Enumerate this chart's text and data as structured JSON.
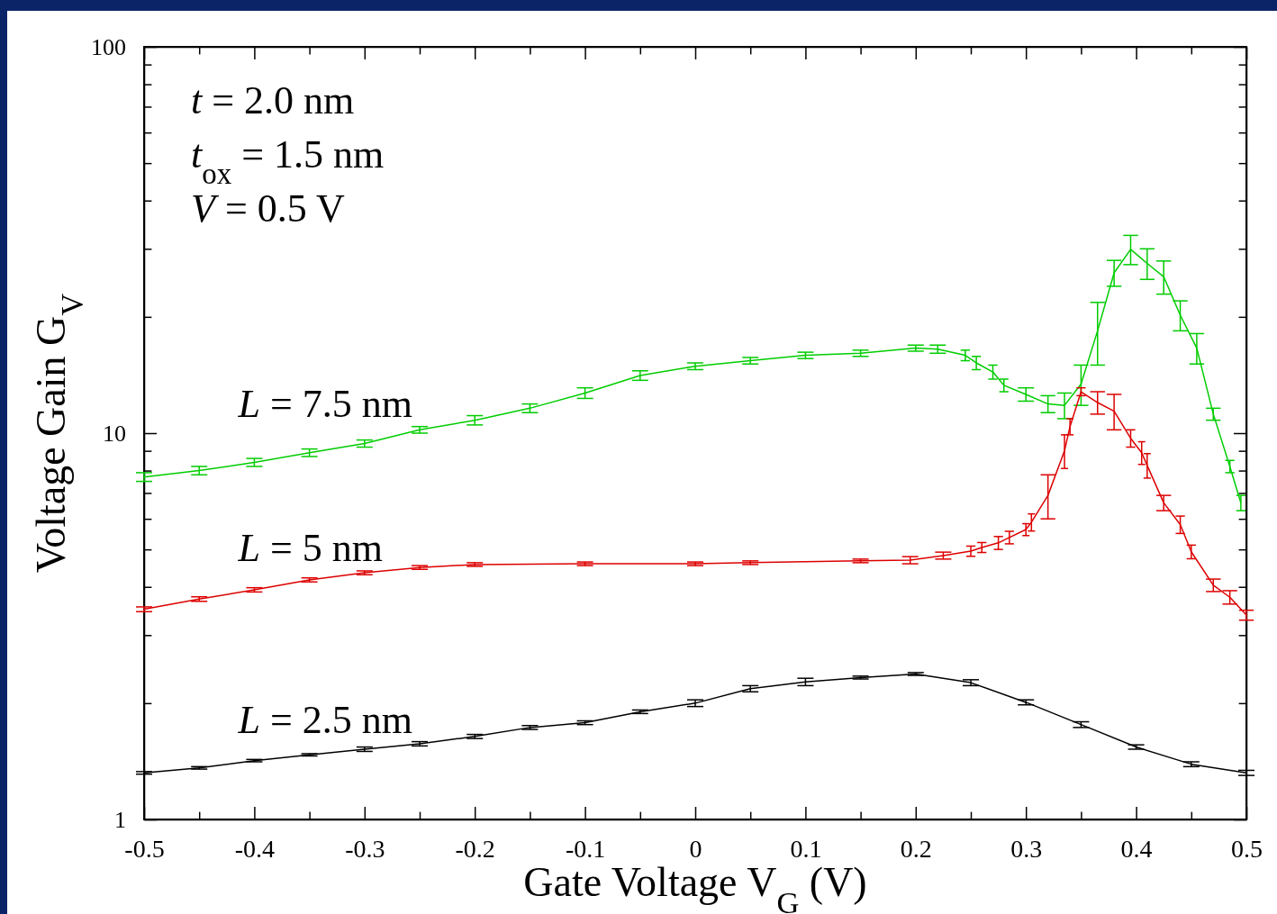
{
  "chart_data": {
    "type": "line",
    "xlabel": "Gate Voltage V$_{G}$ (V)",
    "ylabel": "Voltage Gain G$_{V}$",
    "log": "y",
    "xlim": [
      -0.5,
      0.5
    ],
    "ylim": [
      1,
      100
    ],
    "xticks": [
      -0.5,
      {
        "value": -0.45,
        "label": null
      },
      -0.4,
      {
        "value": -0.35,
        "label": null
      },
      -0.3,
      {
        "value": -0.25,
        "label": null
      },
      -0.2,
      {
        "value": -0.15,
        "label": null
      },
      -0.1,
      {
        "value": -0.05,
        "label": null
      },
      0,
      {
        "value": 0.05,
        "label": null
      },
      0.1,
      {
        "value": 0.15,
        "label": null
      },
      0.2,
      {
        "value": 0.25,
        "label": null
      },
      0.3,
      {
        "value": 0.35,
        "label": null
      },
      0.4,
      {
        "value": 0.45,
        "label": null
      },
      0.5
    ],
    "yticks": [
      1,
      {
        "value": 2,
        "label": null
      },
      {
        "value": 3,
        "label": null
      },
      {
        "value": 4,
        "label": null
      },
      {
        "value": 5,
        "label": null
      },
      {
        "value": 6,
        "label": null
      },
      {
        "value": 7,
        "label": null
      },
      {
        "value": 8,
        "label": null
      },
      {
        "value": 9,
        "label": null
      },
      10,
      {
        "value": 20,
        "label": null
      },
      {
        "value": 30,
        "label": null
      },
      {
        "value": 40,
        "label": null
      },
      {
        "value": 50,
        "label": null
      },
      {
        "value": 60,
        "label": null
      },
      {
        "value": 70,
        "label": null
      },
      {
        "value": 80,
        "label": null
      },
      {
        "value": 90,
        "label": null
      },
      100
    ],
    "grid": false,
    "marker": "none",
    "line_style": "solid",
    "annotations": [
      "t = 2.0 nm",
      "t$_{ox}$ = 1.5 nm",
      "V = 0.5 V"
    ],
    "series": [
      {
        "name": "L = 7.5 nm",
        "color": "#00cc00",
        "x": [
          -0.5,
          -0.45,
          -0.4,
          -0.35,
          -0.3,
          -0.25,
          -0.2,
          -0.15,
          -0.1,
          -0.05,
          0,
          0.05,
          0.1,
          0.15,
          0.2,
          0.22,
          0.245,
          0.255,
          0.27,
          0.28,
          0.3,
          0.32,
          0.335,
          0.35,
          0.365,
          0.38,
          0.395,
          0.41,
          0.425,
          0.44,
          0.455,
          0.47,
          0.485,
          0.495
        ],
        "values": [
          7.7,
          8.0,
          8.4,
          8.9,
          9.4,
          10.2,
          10.8,
          11.6,
          12.7,
          14.1,
          14.9,
          15.4,
          15.9,
          16.1,
          16.6,
          16.5,
          15.9,
          15.2,
          14.4,
          13.3,
          12.6,
          11.9,
          11.8,
          13.4,
          18.4,
          26,
          29.9,
          27.5,
          25.4,
          20.2,
          16.6,
          11.2,
          8.2,
          6.6
        ],
        "errors": [
          0.2,
          0.2,
          0.2,
          0.2,
          0.2,
          0.2,
          0.3,
          0.3,
          0.4,
          0.4,
          0.3,
          0.3,
          0.3,
          0.3,
          0.3,
          0.4,
          0.5,
          0.6,
          0.6,
          0.5,
          0.5,
          0.6,
          0.9,
          1.6,
          3.4,
          2,
          2.6,
          2.5,
          2.5,
          1.8,
          1.5,
          0.4,
          0.3,
          0.3
        ]
      },
      {
        "name": "L = 5 nm",
        "color": "#dd0000",
        "x": [
          -0.5,
          -0.45,
          -0.4,
          -0.35,
          -0.3,
          -0.25,
          -0.2,
          -0.1,
          0,
          0.05,
          0.15,
          0.195,
          0.225,
          0.25,
          0.26,
          0.275,
          0.285,
          0.3,
          0.305,
          0.32,
          0.335,
          0.34,
          0.35,
          0.365,
          0.38,
          0.395,
          0.405,
          0.41,
          0.425,
          0.44,
          0.45,
          0.47,
          0.485,
          0.5
        ],
        "values": [
          3.5,
          3.72,
          3.93,
          4.17,
          4.35,
          4.49,
          4.57,
          4.59,
          4.59,
          4.62,
          4.67,
          4.69,
          4.82,
          4.95,
          5.06,
          5.2,
          5.37,
          5.63,
          5.88,
          6.9,
          9.0,
          10.4,
          12.8,
          12.0,
          11.4,
          9.7,
          8.9,
          8.25,
          6.6,
          5.8,
          4.93,
          4.04,
          3.76,
          3.38
        ],
        "errors": [
          0.05,
          0.05,
          0.05,
          0.05,
          0.05,
          0.05,
          0.05,
          0.05,
          0.05,
          0.05,
          0.05,
          0.1,
          0.1,
          0.15,
          0.15,
          0.2,
          0.2,
          0.2,
          0.3,
          0.9,
          0.9,
          0.5,
          0.3,
          0.8,
          1.2,
          0.5,
          0.6,
          0.6,
          0.3,
          0.3,
          0.2,
          0.15,
          0.15,
          0.1
        ]
      },
      {
        "name": "L = 2.5 nm",
        "color": "#000000",
        "x": [
          -0.5,
          -0.45,
          -0.4,
          -0.35,
          -0.3,
          -0.25,
          -0.2,
          -0.15,
          -0.1,
          -0.05,
          0,
          0.05,
          0.1,
          0.15,
          0.2,
          0.25,
          0.3,
          0.35,
          0.4,
          0.45,
          0.5
        ],
        "values": [
          1.32,
          1.36,
          1.42,
          1.47,
          1.52,
          1.57,
          1.64,
          1.73,
          1.78,
          1.9,
          2.0,
          2.18,
          2.27,
          2.33,
          2.38,
          2.26,
          2.01,
          1.76,
          1.54,
          1.39,
          1.32
        ],
        "errors": [
          0.01,
          0.01,
          0.01,
          0.01,
          0.02,
          0.02,
          0.02,
          0.02,
          0.02,
          0.02,
          0.04,
          0.04,
          0.05,
          0.02,
          0.02,
          0.04,
          0.03,
          0.03,
          0.02,
          0.02,
          0.02
        ]
      }
    ]
  }
}
